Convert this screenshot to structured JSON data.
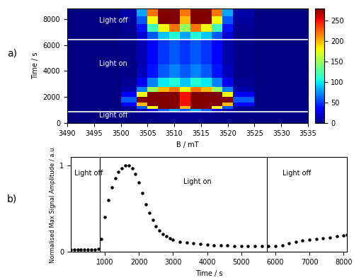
{
  "chart_data": [
    {
      "type": "heatmap",
      "panel_label": "a)",
      "xlabel": "B / mT",
      "ylabel": "Time / s",
      "xlim": [
        3490,
        3535
      ],
      "xticks": [
        3490,
        3495,
        3500,
        3505,
        3510,
        3515,
        3520,
        3525,
        3530,
        3535
      ],
      "ylim": [
        0,
        8800
      ],
      "yticks": [
        0,
        2000,
        4000,
        6000,
        8000
      ],
      "x_edges": [
        3490,
        3500,
        3503,
        3505,
        3507,
        3509,
        3511,
        3512,
        3513,
        3515,
        3517,
        3519,
        3521,
        3525,
        3535
      ],
      "y_edges": [
        0,
        900,
        1100,
        1300,
        1600,
        2000,
        2400,
        2800,
        3500,
        4500,
        5500,
        6400,
        7000,
        7600,
        8200,
        8800
      ],
      "cells": [
        [
          0,
          2,
          3,
          4,
          5,
          6,
          6,
          6,
          6,
          5,
          4,
          3,
          2,
          0
        ],
        [
          0,
          3,
          10,
          30,
          60,
          80,
          60,
          60,
          80,
          60,
          30,
          10,
          3,
          0
        ],
        [
          0,
          8,
          60,
          180,
          280,
          280,
          200,
          200,
          280,
          280,
          180,
          60,
          8,
          0
        ],
        [
          0,
          30,
          200,
          280,
          280,
          280,
          250,
          250,
          280,
          280,
          280,
          200,
          30,
          0
        ],
        [
          0,
          60,
          280,
          280,
          280,
          280,
          250,
          250,
          280,
          280,
          280,
          280,
          60,
          0
        ],
        [
          0,
          30,
          180,
          280,
          280,
          280,
          250,
          250,
          280,
          280,
          280,
          180,
          30,
          0
        ],
        [
          0,
          10,
          70,
          150,
          200,
          220,
          180,
          180,
          220,
          200,
          150,
          70,
          10,
          0
        ],
        [
          0,
          5,
          30,
          70,
          100,
          110,
          90,
          90,
          110,
          100,
          70,
          30,
          5,
          0
        ],
        [
          0,
          3,
          15,
          40,
          60,
          70,
          60,
          60,
          70,
          60,
          40,
          15,
          3,
          0
        ],
        [
          0,
          3,
          12,
          35,
          50,
          60,
          50,
          50,
          60,
          50,
          35,
          12,
          3,
          0
        ],
        [
          0,
          3,
          12,
          35,
          50,
          60,
          50,
          50,
          60,
          50,
          35,
          12,
          3,
          0
        ],
        [
          0,
          3,
          20,
          60,
          90,
          110,
          80,
          80,
          110,
          90,
          60,
          20,
          3,
          0
        ],
        [
          0,
          5,
          40,
          120,
          180,
          220,
          150,
          150,
          220,
          180,
          120,
          40,
          5,
          0
        ],
        [
          0,
          8,
          60,
          180,
          280,
          280,
          200,
          200,
          280,
          280,
          180,
          60,
          8,
          0
        ],
        [
          0,
          10,
          80,
          220,
          280,
          280,
          220,
          220,
          280,
          280,
          220,
          80,
          10,
          0
        ]
      ],
      "color_range": [
        0,
        280
      ],
      "color_ticks": [
        0,
        50,
        100,
        150,
        200,
        250
      ],
      "hlines": [
        900,
        6400
      ],
      "annotations": [
        {
          "text": "Light off",
          "x": 3496,
          "y": 7600
        },
        {
          "text": "Light on",
          "x": 3496,
          "y": 4300
        },
        {
          "text": "Light off",
          "x": 3496,
          "y": 350
        }
      ]
    },
    {
      "type": "scatter",
      "panel_label": "b)",
      "xlabel": "Time / s",
      "ylabel": "Normalised Max Signal Amplitude / a.u.",
      "xlim": [
        0,
        8100
      ],
      "xticks": [
        1000,
        2000,
        3000,
        4000,
        5000,
        6000,
        7000,
        8000
      ],
      "ylim": [
        0,
        1.1
      ],
      "yticks": [
        0,
        1
      ],
      "color": "#000000",
      "marker": "o",
      "x": [
        0,
        100,
        200,
        300,
        400,
        500,
        600,
        700,
        800,
        900,
        1000,
        1100,
        1200,
        1300,
        1400,
        1500,
        1600,
        1700,
        1800,
        1900,
        2000,
        2100,
        2200,
        2300,
        2400,
        2500,
        2600,
        2700,
        2800,
        2900,
        3000,
        3200,
        3400,
        3600,
        3800,
        4000,
        4200,
        4400,
        4600,
        4800,
        5000,
        5200,
        5400,
        5600,
        5800,
        6000,
        6200,
        6400,
        6600,
        6800,
        7000,
        7200,
        7400,
        7600,
        7800,
        8000,
        8100
      ],
      "values": [
        0.03,
        0.03,
        0.03,
        0.03,
        0.03,
        0.03,
        0.03,
        0.03,
        0.04,
        0.15,
        0.4,
        0.6,
        0.75,
        0.85,
        0.93,
        0.97,
        1.0,
        1.0,
        0.97,
        0.9,
        0.8,
        0.68,
        0.55,
        0.45,
        0.37,
        0.3,
        0.25,
        0.21,
        0.18,
        0.16,
        0.14,
        0.12,
        0.11,
        0.1,
        0.09,
        0.085,
        0.08,
        0.075,
        0.075,
        0.07,
        0.07,
        0.07,
        0.07,
        0.07,
        0.07,
        0.07,
        0.08,
        0.1,
        0.12,
        0.13,
        0.14,
        0.15,
        0.16,
        0.17,
        0.18,
        0.19,
        0.2
      ],
      "vlines": [
        850,
        5750
      ],
      "annotations": [
        {
          "text": "Light off",
          "x": 100,
          "y": 0.95
        },
        {
          "text": "Light on",
          "x": 3300,
          "y": 0.85
        },
        {
          "text": "Light off",
          "x": 6200,
          "y": 0.95
        }
      ]
    }
  ]
}
